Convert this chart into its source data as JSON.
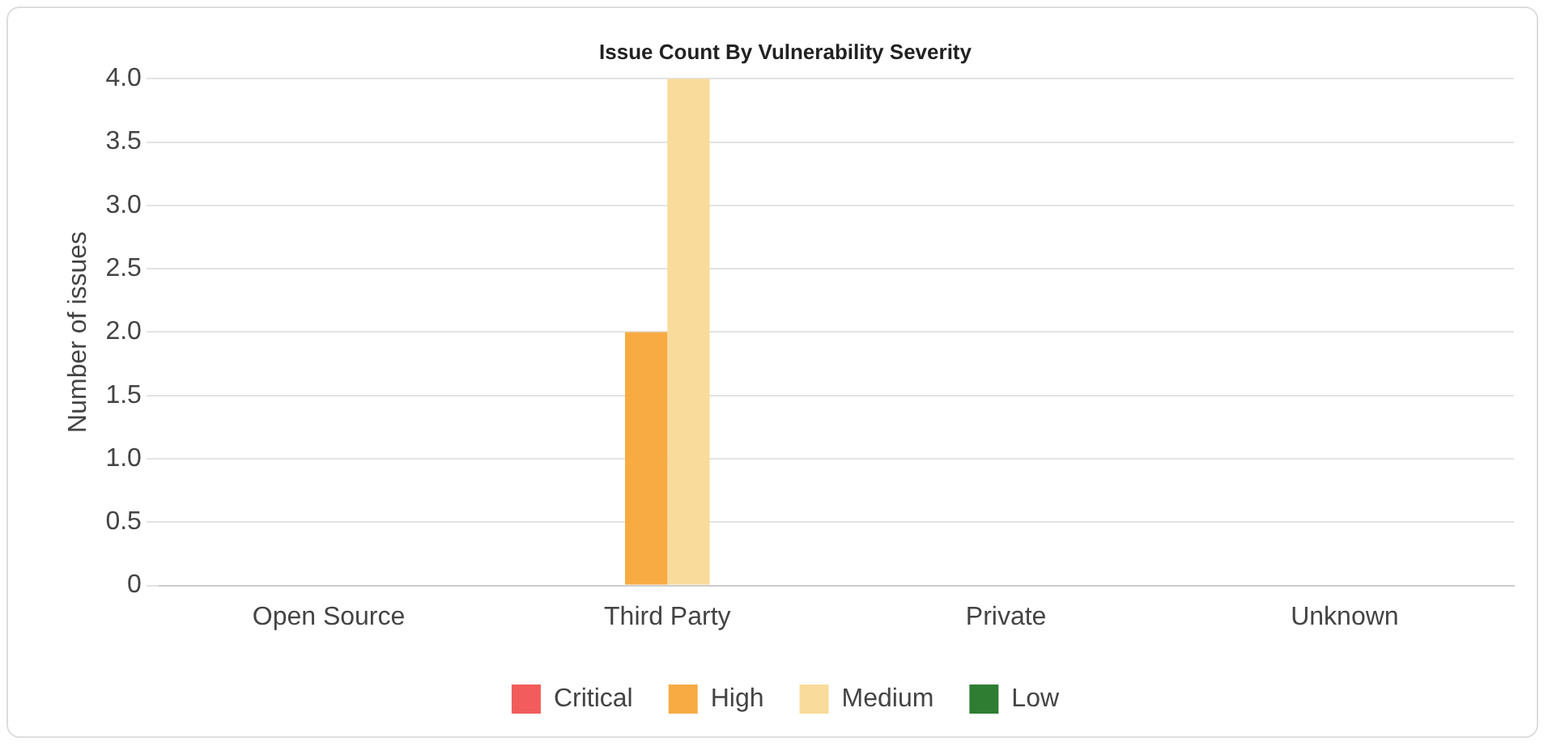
{
  "chart_data": {
    "type": "bar",
    "title": "Issue Count By Vulnerability Severity",
    "ylabel": "Number of issues",
    "categories": [
      "Open Source",
      "Third Party",
      "Private",
      "Unknown"
    ],
    "series": [
      {
        "name": "Critical",
        "color": "#f25c5c",
        "values": [
          0,
          0,
          0,
          0
        ]
      },
      {
        "name": "High",
        "color": "#f8ab43",
        "values": [
          0,
          2,
          0,
          0
        ]
      },
      {
        "name": "Medium",
        "color": "#f9db9b",
        "values": [
          0,
          4,
          0,
          0
        ]
      },
      {
        "name": "Low",
        "color": "#2e7d32",
        "values": [
          0,
          0,
          0,
          0
        ]
      }
    ],
    "ylim": [
      0,
      4
    ],
    "yticks": [
      0,
      0.5,
      {
        "value": 1,
        "label": "1.0"
      },
      1.5,
      {
        "value": 2,
        "label": "2.0"
      },
      2.5,
      {
        "value": 3,
        "label": "3.0"
      },
      3.5,
      {
        "value": 4,
        "label": "4.0"
      }
    ],
    "grid": "y",
    "legend": "bottom"
  }
}
